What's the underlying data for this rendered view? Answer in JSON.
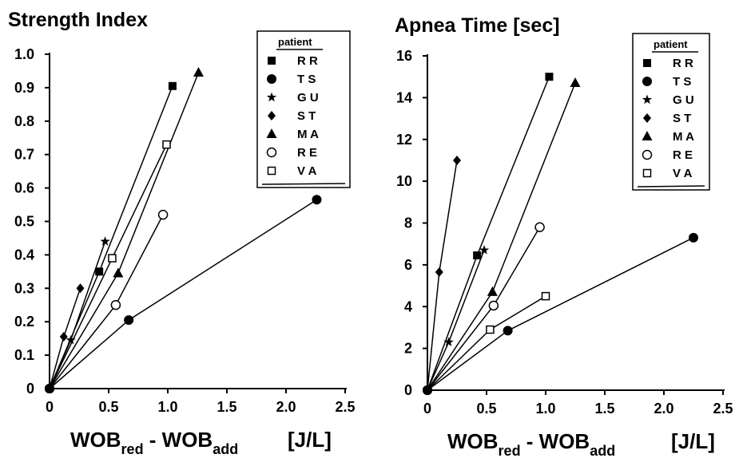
{
  "legend_title": "patient",
  "patients": [
    {
      "name": "RR",
      "marker": "square-filled"
    },
    {
      "name": "TS",
      "marker": "circle-filled"
    },
    {
      "name": "GU",
      "marker": "star"
    },
    {
      "name": "ST",
      "marker": "diamond-filled"
    },
    {
      "name": "MA",
      "marker": "triangle-filled"
    },
    {
      "name": "RE",
      "marker": "circle-open"
    },
    {
      "name": "VA",
      "marker": "square-open"
    }
  ],
  "chart_data": [
    {
      "type": "line",
      "title": "Strength Index",
      "xlabel": {
        "main": "WOB",
        "sub1": "red",
        "mid": " - WOB",
        "sub2": "add",
        "unit": "[J/L]"
      },
      "ylabel": "",
      "xlim": [
        0,
        2.5
      ],
      "ylim": [
        0,
        1.0
      ],
      "x_ticks": [
        "0",
        "0.5",
        "1.0",
        "1.5",
        "2.0",
        "2.5"
      ],
      "y_ticks": [
        "0",
        "0.1",
        "0.2",
        "0.3",
        "0.4",
        "0.5",
        "0.6",
        "0.7",
        "0.8",
        "0.9",
        "1.0"
      ],
      "grid": false,
      "legend_position": "top-right",
      "series": [
        {
          "name": "RR",
          "points": [
            [
              0,
              0
            ],
            [
              0.42,
              0.35
            ],
            [
              1.04,
              0.905
            ]
          ]
        },
        {
          "name": "TS",
          "points": [
            [
              0,
              0
            ],
            [
              0.67,
              0.205
            ],
            [
              2.26,
              0.565
            ]
          ]
        },
        {
          "name": "GU",
          "points": [
            [
              0,
              0
            ],
            [
              0.18,
              0.145
            ],
            [
              0.47,
              0.44
            ]
          ]
        },
        {
          "name": "ST",
          "points": [
            [
              0,
              0
            ],
            [
              0.12,
              0.155
            ],
            [
              0.26,
              0.3
            ]
          ]
        },
        {
          "name": "MA",
          "points": [
            [
              0,
              0
            ],
            [
              0.58,
              0.345
            ],
            [
              1.26,
              0.945
            ]
          ]
        },
        {
          "name": "RE",
          "points": [
            [
              0,
              0
            ],
            [
              0.56,
              0.25
            ],
            [
              0.96,
              0.52
            ]
          ]
        },
        {
          "name": "VA",
          "points": [
            [
              0,
              0
            ],
            [
              0.53,
              0.39
            ],
            [
              0.99,
              0.73
            ]
          ]
        }
      ]
    },
    {
      "type": "line",
      "title": "Apnea Time [sec]",
      "xlabel": {
        "main": "WOB",
        "sub1": "red",
        "mid": " - WOB",
        "sub2": "add",
        "unit": "[J/L]"
      },
      "ylabel": "",
      "xlim": [
        0,
        2.5
      ],
      "ylim": [
        0,
        16
      ],
      "x_ticks": [
        "0",
        "0.5",
        "1.0",
        "1.5",
        "2.0",
        "2.5"
      ],
      "y_ticks": [
        "0",
        "2",
        "4",
        "6",
        "8",
        "10",
        "12",
        "14",
        "16"
      ],
      "grid": false,
      "legend_position": "top-right",
      "series": [
        {
          "name": "RR",
          "points": [
            [
              0,
              0
            ],
            [
              0.42,
              6.45
            ],
            [
              1.03,
              15.0
            ]
          ]
        },
        {
          "name": "TS",
          "points": [
            [
              0,
              0
            ],
            [
              0.68,
              2.85
            ],
            [
              2.25,
              7.3
            ]
          ]
        },
        {
          "name": "GU",
          "points": [
            [
              0,
              0
            ],
            [
              0.18,
              2.3
            ],
            [
              0.48,
              6.7
            ]
          ]
        },
        {
          "name": "ST",
          "points": [
            [
              0,
              0
            ],
            [
              0.1,
              5.65
            ],
            [
              0.25,
              11.0
            ]
          ]
        },
        {
          "name": "MA",
          "points": [
            [
              0,
              0
            ],
            [
              0.55,
              4.7
            ],
            [
              1.25,
              14.7
            ]
          ]
        },
        {
          "name": "RE",
          "points": [
            [
              0,
              0
            ],
            [
              0.56,
              4.05
            ],
            [
              0.95,
              7.8
            ]
          ]
        },
        {
          "name": "VA",
          "points": [
            [
              0,
              0
            ],
            [
              0.53,
              2.9
            ],
            [
              1.0,
              4.5
            ]
          ]
        }
      ]
    }
  ]
}
